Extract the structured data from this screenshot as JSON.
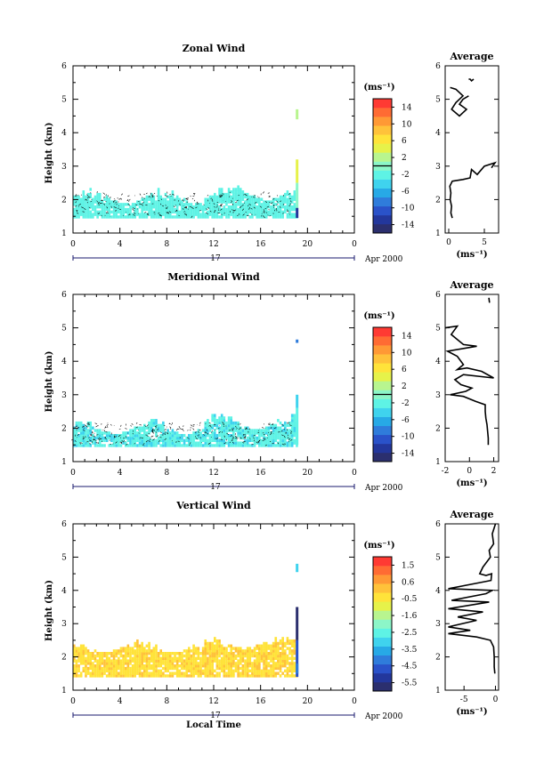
{
  "colormap": [
    "#2b2f6e",
    "#23379c",
    "#2a52c9",
    "#2f7cdb",
    "#27a9e6",
    "#3fd3ee",
    "#5ef3e5",
    "#8cf6c8",
    "#b8f58f",
    "#e6f24a",
    "#ffe33a",
    "#ffc23a",
    "#ff9935",
    "#ff6b33",
    "#ff3a33"
  ],
  "common": {
    "day_label": "17",
    "date_label": "Apr 2000",
    "xaxis_label": "Local Time",
    "ylabel": "Height (km)",
    "unit_label": "(ms⁻¹)",
    "x_ticks": [
      "0",
      "4",
      "8",
      "12",
      "16",
      "20",
      "0"
    ],
    "y_ticks": [
      "1",
      "2",
      "3",
      "4",
      "5",
      "6"
    ]
  },
  "chart_data": [
    {
      "type": "heatmap",
      "title": "Zonal Wind",
      "xlabel": "",
      "ylabel": "Height (km)",
      "xlim": [
        0,
        24
      ],
      "ylim": [
        1,
        6
      ],
      "data_time_range": [
        0,
        19
      ],
      "colorbar": {
        "min": -16,
        "max": 16,
        "ticks": [
          "14",
          "10",
          "6",
          "2",
          "-2",
          "-6",
          "-10",
          "-14"
        ],
        "zero_line": 0
      },
      "cells": {
        "low": 1.45,
        "high_base": 1.85,
        "high_var": 0.45,
        "values": [
          -2.5,
          1.5
        ],
        "second_color_value": -1.5,
        "contour": true
      },
      "spike": {
        "time": 19.0,
        "segments": [
          {
            "y0": 4.4,
            "y1": 4.7,
            "value": 2
          },
          {
            "y0": 2.5,
            "y1": 3.2,
            "value": 5
          },
          {
            "y0": 1.75,
            "y1": 2.5,
            "value": 1
          },
          {
            "y0": 1.45,
            "y1": 1.75,
            "value": -13
          }
        ]
      },
      "average": {
        "title": "Average",
        "xlabel": "(ms⁻¹)",
        "xlim": [
          -0.5,
          7
        ],
        "x_ticks": [
          "0",
          "5"
        ],
        "x_tick_values": [
          0,
          5
        ],
        "segments": [
          [
            [
              3.5,
              5.6
            ],
            [
              3.2,
              5.55
            ],
            [
              3.0,
              5.6
            ],
            [
              2.8,
              5.6
            ]
          ],
          [
            [
              0.2,
              5.35
            ],
            [
              1.0,
              5.3
            ],
            [
              2.0,
              5.1
            ],
            [
              1.0,
              4.9
            ],
            [
              0.4,
              4.7
            ],
            [
              1.5,
              4.5
            ],
            [
              2.5,
              4.7
            ],
            [
              1.5,
              4.85
            ],
            [
              2.0,
              5.0
            ],
            [
              2.8,
              5.1
            ]
          ],
          [
            [
              0.5,
              1.45
            ],
            [
              0.3,
              1.6
            ],
            [
              0.4,
              1.8
            ],
            [
              0.2,
              2.0
            ],
            [
              0.3,
              2.2
            ],
            [
              0.15,
              2.4
            ],
            [
              0.5,
              2.55
            ],
            [
              2.0,
              2.6
            ],
            [
              3.0,
              2.65
            ],
            [
              3.2,
              2.9
            ],
            [
              4.0,
              2.75
            ],
            [
              5.0,
              3.0
            ],
            [
              6.5,
              3.1
            ],
            [
              6.0,
              2.95
            ]
          ]
        ]
      }
    },
    {
      "type": "heatmap",
      "title": "Meridional Wind",
      "xlabel": "",
      "ylabel": "Height (km)",
      "xlim": [
        0,
        24
      ],
      "ylim": [
        1,
        6
      ],
      "data_time_range": [
        0,
        19
      ],
      "colorbar": {
        "min": -16,
        "max": 16,
        "ticks": [
          "14",
          "10",
          "6",
          "2",
          "-2",
          "-6",
          "-10",
          "-14"
        ],
        "zero_line": 0
      },
      "cells": {
        "low": 1.45,
        "high_base": 1.8,
        "high_var": 0.5,
        "values": [
          -2.5,
          1.5
        ],
        "second_color_value": -4.5,
        "contour": true
      },
      "spike": {
        "time": 19.0,
        "segments": [
          {
            "y0": 4.55,
            "y1": 4.65,
            "value": -9
          },
          {
            "y0": 2.6,
            "y1": 3.0,
            "value": -5
          },
          {
            "y0": 1.85,
            "y1": 2.6,
            "value": -2
          },
          {
            "y0": 1.5,
            "y1": 1.85,
            "value": -3
          }
        ]
      },
      "average": {
        "title": "Average",
        "xlabel": "(ms⁻¹)",
        "xlim": [
          -2,
          2.4
        ],
        "x_ticks": [
          "-2",
          "0",
          "2"
        ],
        "x_tick_values": [
          -2,
          0,
          2
        ],
        "segments": [
          [
            [
              1.6,
              5.9
            ],
            [
              1.65,
              5.75
            ]
          ],
          [
            [
              -2.0,
              5.0
            ],
            [
              -1.0,
              5.05
            ],
            [
              -1.5,
              4.8
            ],
            [
              -0.5,
              4.5
            ],
            [
              0.6,
              4.45
            ],
            [
              -1.8,
              4.3
            ],
            [
              -1.0,
              4.15
            ],
            [
              -0.5,
              3.9
            ],
            [
              -1.0,
              3.75
            ],
            [
              -0.2,
              3.8
            ],
            [
              1.0,
              3.7
            ],
            [
              2.0,
              3.5
            ],
            [
              -0.5,
              3.6
            ],
            [
              -1.2,
              3.45
            ],
            [
              -0.7,
              3.3
            ],
            [
              0.2,
              3.2
            ],
            [
              -0.3,
              3.1
            ],
            [
              -1.6,
              3.0
            ],
            [
              -0.5,
              2.95
            ],
            [
              0.5,
              2.8
            ],
            [
              1.3,
              2.7
            ],
            [
              1.3,
              2.5
            ],
            [
              1.35,
              2.3
            ],
            [
              1.45,
              2.1
            ],
            [
              1.5,
              1.9
            ],
            [
              1.55,
              1.7
            ],
            [
              1.55,
              1.5
            ]
          ]
        ]
      }
    },
    {
      "type": "heatmap",
      "title": "Vertical Wind",
      "xlabel": "Local Time",
      "ylabel": "Height (km)",
      "xlim": [
        0,
        24
      ],
      "ylim": [
        1,
        6
      ],
      "data_time_range": [
        0,
        19
      ],
      "colorbar": {
        "min": -6.2,
        "max": 2.2,
        "ticks": [
          "1.5",
          "0.6",
          "-0.5",
          "-1.6",
          "-2.5",
          "-3.5",
          "-4.5",
          "-5.5"
        ],
        "zero_line": null
      },
      "cells": {
        "low": 1.4,
        "high_base": 2.1,
        "high_var": 0.4,
        "values": [
          -0.6,
          -0.2
        ],
        "second_color_value": 0.2,
        "contour": false
      },
      "spike": {
        "time": 19.0,
        "segments": [
          {
            "y0": 4.55,
            "y1": 4.8,
            "value": -2.9
          },
          {
            "y0": 2.5,
            "y1": 3.5,
            "value": -6.0
          },
          {
            "y0": 1.4,
            "y1": 2.5,
            "value": -4.8
          },
          {
            "y0": 1.5,
            "y1": 1.8,
            "value": -4.0
          }
        ]
      },
      "average": {
        "title": "Average",
        "xlabel": "(ms⁻¹)",
        "xlim": [
          -8,
          0.5
        ],
        "x_ticks": [
          "-5",
          "0"
        ],
        "x_tick_values": [
          -5,
          0
        ],
        "segments": [
          [
            [
              0,
              6.0
            ],
            [
              -0.5,
              5.7
            ],
            [
              -0.3,
              5.4
            ],
            [
              -1.0,
              5.2
            ],
            [
              -0.8,
              5.0
            ],
            [
              -2.0,
              4.7
            ],
            [
              -2.5,
              4.5
            ],
            [
              -1.5,
              4.45
            ],
            [
              -0.6,
              4.5
            ],
            [
              -0.7,
              4.3
            ],
            [
              -7.5,
              4.05
            ],
            [
              -0.5,
              4.0
            ],
            [
              -1.5,
              3.9
            ],
            [
              -7.0,
              3.7
            ],
            [
              -1.0,
              3.65
            ],
            [
              -7.5,
              3.45
            ],
            [
              -2.0,
              3.35
            ],
            [
              -6.0,
              3.2
            ],
            [
              -3.0,
              3.1
            ],
            [
              -7.5,
              2.9
            ],
            [
              -4.0,
              2.8
            ],
            [
              -7.5,
              2.7
            ],
            [
              -3.0,
              2.6
            ],
            [
              -0.8,
              2.5
            ],
            [
              -0.3,
              2.3
            ],
            [
              -0.2,
              2.0
            ],
            [
              -0.2,
              1.7
            ],
            [
              -0.1,
              1.5
            ]
          ]
        ]
      }
    }
  ]
}
